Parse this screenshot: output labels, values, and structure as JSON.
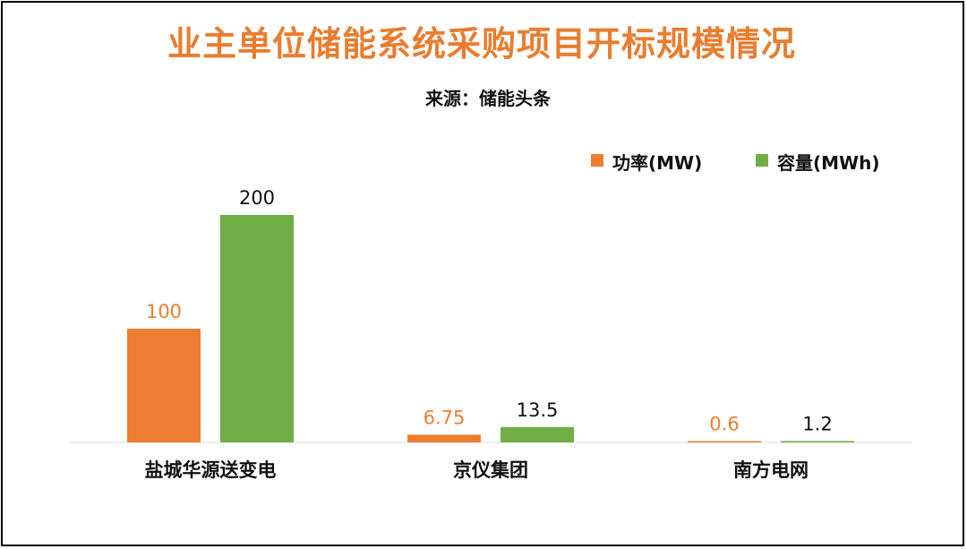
{
  "title": "业主单位储能系统采购项目开标规模情况",
  "subtitle": "来源：储能头条",
  "colors": {
    "title": "#E87D30",
    "power": "#ED7D31",
    "capacity": "#70AD47",
    "axis": "#D9D9D9"
  },
  "chart_data": {
    "type": "bar",
    "title": "业主单位储能系统采购项目开标规模情况",
    "subtitle": "来源：储能头条",
    "categories": [
      "盐城华源送变电",
      "京仪集团",
      "南方电网"
    ],
    "series": [
      {
        "name": "功率(MW)",
        "values": [
          100,
          6.75,
          0.6
        ],
        "labels": [
          "100",
          "6.75",
          "0.6"
        ],
        "color": "#ED7D31",
        "label_color": "#ED7D31"
      },
      {
        "name": "容量(MWh)",
        "values": [
          200,
          13.5,
          1.2
        ],
        "labels": [
          "200",
          "13.5",
          "1.2"
        ],
        "color": "#70AD47",
        "label_color": "#111111"
      }
    ],
    "ylim": [
      0,
      200
    ],
    "grid": false,
    "legend_position": "top-right",
    "xlabel": "",
    "ylabel": ""
  }
}
